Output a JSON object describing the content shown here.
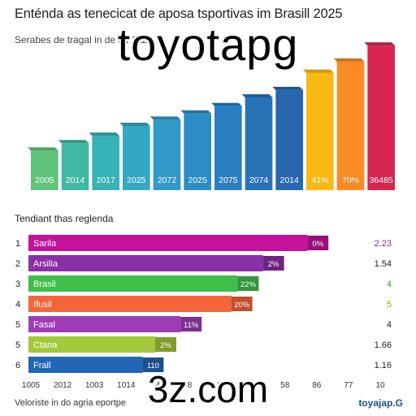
{
  "title": "Enténda as tenecicat de aposa tsportivas im Brasill 2025",
  "subtitle": "Serabes de tragal in de lat 1a2",
  "watermark_top": "toyotapg",
  "watermark_bottom": "3z.com",
  "footer": {
    "left": "Veloriste in do agria eportpe",
    "right": "toyajap.G"
  },
  "chart_data": [
    {
      "type": "bar",
      "categories": [
        "2005",
        "2014",
        "2017",
        "2025",
        "2072",
        "2025",
        "2075",
        "2074",
        "2014",
        "41%",
        "70%",
        "36485"
      ],
      "values": [
        3.2,
        3.8,
        4.4,
        5.2,
        5.7,
        6.2,
        6.8,
        7.5,
        8.1,
        9.5,
        10.4,
        11.7
      ],
      "colors": [
        "#5fc37a",
        "#3fb9a4",
        "#37b2b7",
        "#33a8c4",
        "#3199c7",
        "#2c8cc6",
        "#2a7fc0",
        "#2872b8",
        "#2866ae",
        "#fbb916",
        "#f88b26",
        "#d92650"
      ],
      "ylim": [
        0,
        12.5
      ],
      "grid": false
    },
    {
      "type": "bar",
      "orientation": "horizontal",
      "title": "Tendiant thas reglenda",
      "ranks": [
        "1",
        "2",
        "3",
        "4",
        "5",
        "5",
        "6"
      ],
      "categories": [
        "Sarila",
        "Arsilia",
        "Brasil",
        "Ifusil",
        "Fasal",
        "Ctana",
        "Frall"
      ],
      "values": [
        88,
        74,
        66,
        64,
        48,
        40,
        36
      ],
      "bar_labels": [
        "0%",
        "2%",
        "22%",
        "20%",
        "11%",
        "2%",
        "110"
      ],
      "right_values": [
        "2.23",
        "1.54",
        "4",
        "5",
        "4",
        "1.66",
        "1.16"
      ],
      "right_value_colors": [
        "#8e2a8c",
        "#222222",
        "#2e9a3a",
        "#b89300",
        "#222222",
        "#222222",
        "#222222"
      ],
      "colors": [
        "#c4129a",
        "#8a2fa8",
        "#3fbf4a",
        "#f5653a",
        "#9f3db8",
        "#a3c93a",
        "#2266b6"
      ],
      "x_tick_labels": [
        "1005",
        "2012",
        "1003",
        "1014",
        "4",
        "8",
        "20",
        "18",
        "58",
        "86",
        "77",
        "10"
      ]
    }
  ]
}
